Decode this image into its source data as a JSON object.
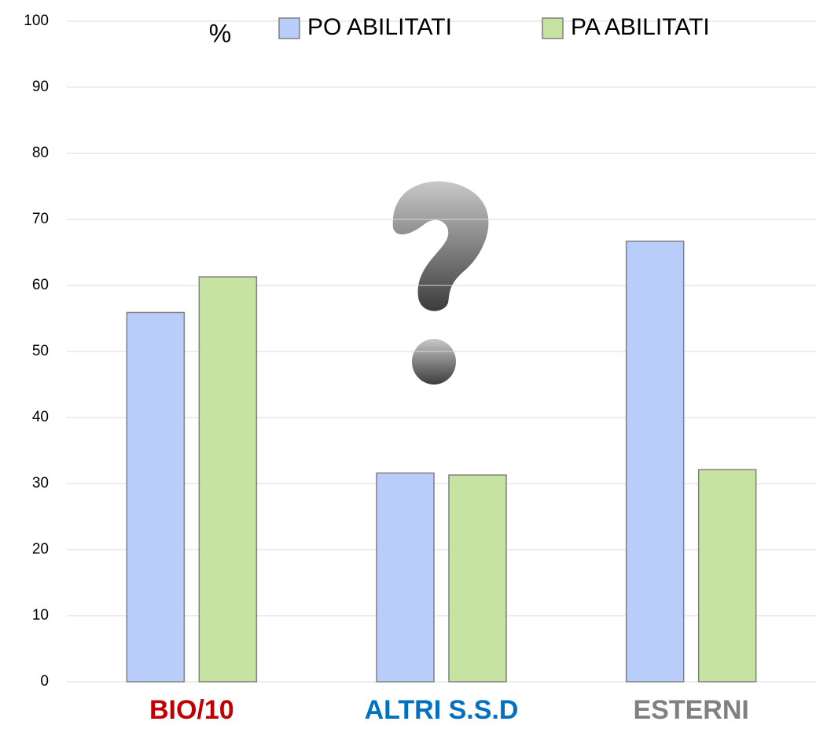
{
  "chart_data": {
    "type": "bar",
    "ylabel": "%",
    "categories": [
      "BIO/10",
      "ALTRI S.S.D",
      "ESTERNI"
    ],
    "category_colors": [
      "#c00000",
      "#0070c0",
      "#808080"
    ],
    "series": [
      {
        "name": "PO ABILITATI",
        "color": "#b9cdfb",
        "values": [
          55.9,
          31.6,
          66.7
        ]
      },
      {
        "name": "PA ABILITATI",
        "color": "#c6e3a2",
        "values": [
          61.3,
          31.3,
          32.1
        ]
      }
    ],
    "ylim": [
      0,
      100
    ],
    "yticks": [
      0,
      10,
      20,
      30,
      40,
      50,
      60,
      70,
      80,
      90,
      100
    ],
    "grid": true
  }
}
